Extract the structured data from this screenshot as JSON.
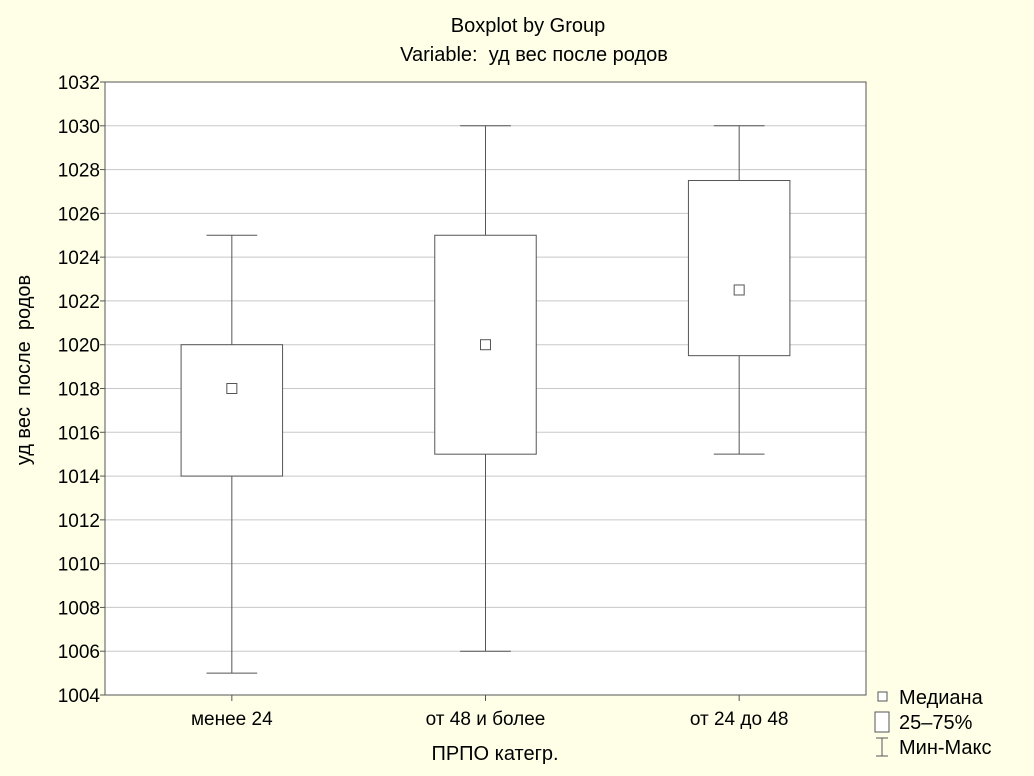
{
  "chart_data": {
    "type": "boxplot",
    "title": "Boxplot by Group",
    "subtitle": "Variable:  уд вес после родов",
    "xlabel": "ПРПО категр.",
    "ylabel": "уд вес  после  родов",
    "ylim": [
      1004,
      1032
    ],
    "yticks": [
      1004,
      1006,
      1008,
      1010,
      1012,
      1014,
      1016,
      1018,
      1020,
      1022,
      1024,
      1026,
      1028,
      1030,
      1032
    ],
    "grid": true,
    "legend_position": "bottom-right",
    "categories": [
      "менее 24",
      "от 48 и более",
      "от 24 до 48"
    ],
    "boxes": [
      {
        "category": "менее 24",
        "min": 1005,
        "q1": 1014,
        "median": 1018,
        "q3": 1020,
        "max": 1025
      },
      {
        "category": "от 48 и более",
        "min": 1006,
        "q1": 1015,
        "median": 1020,
        "q3": 1025,
        "max": 1030
      },
      {
        "category": "от 24 до 48",
        "min": 1015,
        "q1": 1019.5,
        "median": 1022.5,
        "q3": 1027.5,
        "max": 1030
      }
    ],
    "legend": [
      {
        "symbol": "median",
        "label": "Медиана"
      },
      {
        "symbol": "box",
        "label": "25–75%"
      },
      {
        "symbol": "whisker",
        "label": "Мин-Макс"
      }
    ]
  },
  "colors": {
    "background": "#ffffe8",
    "plot_background": "#ffffff",
    "stroke": "#555555",
    "grid": "#c8c8c8"
  }
}
